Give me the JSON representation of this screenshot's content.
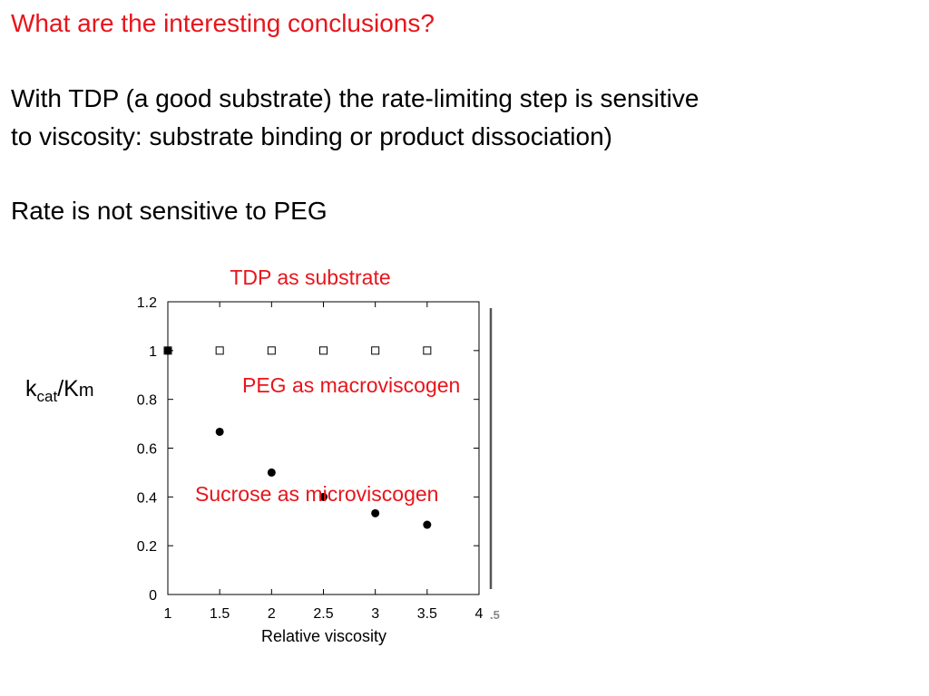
{
  "slide": {
    "heading": "What are the interesting conclusions?",
    "paragraph1_line1": "With TDP (a good substrate) the rate-limiting step is sensitive",
    "paragraph1_line2": "to viscosity: substrate binding or product dissociation)",
    "paragraph2": "Rate is not sensitive to PEG"
  },
  "chart_data": {
    "type": "scatter",
    "title": "TDP as substrate",
    "xlabel": "Relative viscosity",
    "ylabel": {
      "k": "k",
      "sub": "cat",
      "rest": "/K",
      "m": "m"
    },
    "xlim": [
      1,
      4
    ],
    "ylim": [
      0,
      1.2
    ],
    "x_ticks": [
      "1",
      "1.5",
      "2",
      "2.5",
      "3",
      "3.5",
      "4"
    ],
    "y_ticks": [
      "0",
      "0.2",
      "0.4",
      "0.6",
      "0.8",
      "1",
      "1.2"
    ],
    "grid": false,
    "series": [
      {
        "name": "PEG as macroviscogen",
        "marker": "open-square",
        "x": [
          1,
          1.5,
          2,
          2.5,
          3,
          3.5
        ],
        "y": [
          1,
          1,
          1,
          1,
          1,
          1
        ]
      },
      {
        "name": "Sucrose as microviscogen",
        "marker": "filled-circle",
        "x": [
          1,
          1.5,
          2,
          2.5,
          3,
          3.5
        ],
        "y": [
          1,
          0.667,
          0.5,
          0.4,
          0.333,
          0.286
        ]
      }
    ],
    "annotation_color": "#e8141b",
    "residual_tick_label": ".5"
  }
}
